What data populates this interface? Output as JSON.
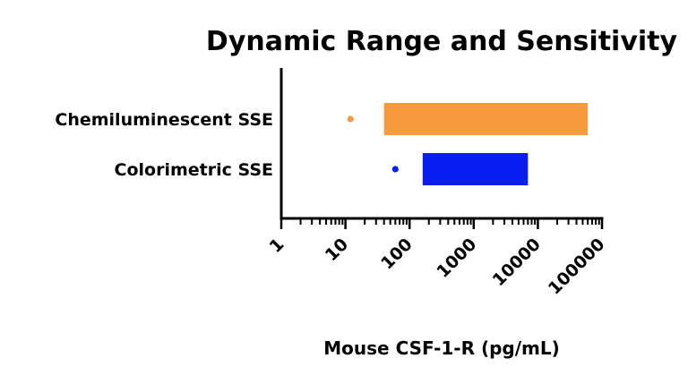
{
  "chart_data": {
    "type": "bar",
    "title": "Dynamic Range and Sensitivity",
    "xlabel": "Mouse CSF-1-R (pg/mL)",
    "ylabel": "",
    "xscale": "log",
    "xlim": [
      1,
      100000
    ],
    "xticks": [
      "1",
      "10",
      "100",
      "1000",
      "10000",
      "100000"
    ],
    "grid": false,
    "categories": [
      "Chemiluminescent SSE",
      "Colorimetric SSE"
    ],
    "series": [
      {
        "category": "Chemiluminescent SSE",
        "range_low": 40,
        "range_high": 60000,
        "sensitivity": 12,
        "color": "#f79a3e"
      },
      {
        "category": "Colorimetric SSE",
        "range_low": 160,
        "range_high": 7000,
        "sensitivity": 60,
        "color": "#0a1ef2"
      }
    ]
  }
}
